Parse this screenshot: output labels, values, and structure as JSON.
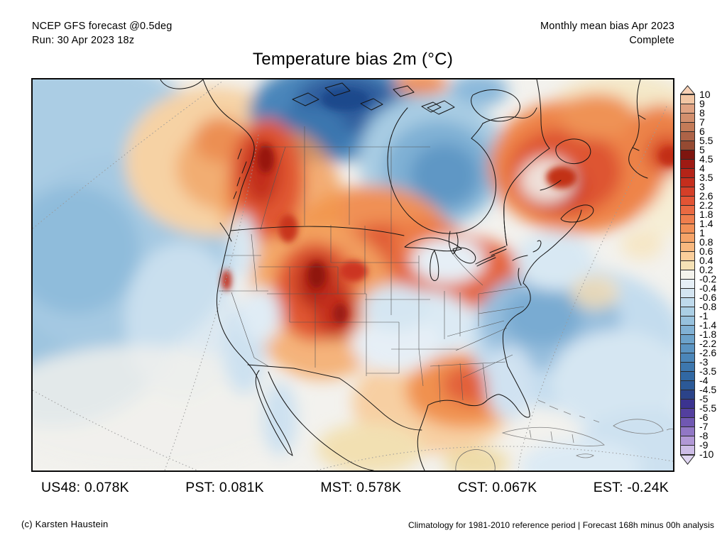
{
  "header": {
    "left_line1": "NCEP GFS forecast @0.5deg",
    "left_line2": "Run: 30 Apr 2023 18z",
    "right_line1": "Monthly mean bias Apr 2023",
    "right_line2": "Complete"
  },
  "title": "Temperature bias 2m (°C)",
  "stats": [
    "US48: 0.078K",
    "PST: 0.081K",
    "MST: 0.578K",
    "CST: 0.067K",
    "EST: -0.24K"
  ],
  "footer": {
    "left": "(c) Karsten Haustein",
    "right": "Climatology for 1981-2010 reference period | Forecast 168h minus 00h analysis"
  },
  "colorbar": {
    "labels": [
      "10",
      "9",
      "8",
      "7",
      "6",
      "5.5",
      "5",
      "4.5",
      "4",
      "3.5",
      "3",
      "2.6",
      "2.2",
      "1.8",
      "1.4",
      "1",
      "0.8",
      "0.6",
      "0.4",
      "0.2",
      "-0.2",
      "-0.4",
      "-0.6",
      "-0.8",
      "-1",
      "-1.4",
      "-1.8",
      "-2.2",
      "-2.6",
      "-3",
      "-3.5",
      "-4",
      "-4.5",
      "-5",
      "-5.5",
      "-6",
      "-7",
      "-8",
      "-9",
      "-10"
    ],
    "colors": [
      "#f2c6a4",
      "#e0a383",
      "#d28f6d",
      "#c37b58",
      "#ad6347",
      "#954a32",
      "#7e150f",
      "#9e1a13",
      "#b52418",
      "#c52e1d",
      "#d43f28",
      "#e25434",
      "#ea6a42",
      "#ef7e4d",
      "#f29057",
      "#f5a368",
      "#f8b87f",
      "#fbce9b",
      "#f6e2b6",
      "#f4f3ed",
      "#e6eff6",
      "#d4e5f1",
      "#bfdaec",
      "#abcfe5",
      "#97c1dd",
      "#81b1d4",
      "#6ca2ca",
      "#5b94c2",
      "#4b86b9",
      "#3d77ae",
      "#3168a3",
      "#2b5997",
      "#2b4389",
      "#3b3390",
      "#533f9e",
      "#7058b2",
      "#9177c5",
      "#b198d6",
      "#cdbde7"
    ],
    "arrow_top_color": "#f7d0b5",
    "arrow_bottom_color": "#e0d6f2"
  },
  "chart_data": {
    "type": "heatmap",
    "title": "Temperature bias 2m (°C)",
    "units": "°C (bias, forecast 168h minus 00h analysis)",
    "region": "North America (polar stereographic view)",
    "model": "NCEP GFS forecast @0.5deg",
    "run": "30 Apr 2023 18z",
    "period": "Monthly mean bias Apr 2023 (Complete)",
    "reference": "Climatology for 1981-2010 reference period",
    "colorbar_levels": [
      10,
      9,
      8,
      7,
      6,
      5.5,
      5,
      4.5,
      4,
      3.5,
      3,
      2.6,
      2.2,
      1.8,
      1.4,
      1,
      0.8,
      0.6,
      0.4,
      0.2,
      -0.2,
      -0.4,
      -0.6,
      -0.8,
      -1,
      -1.4,
      -1.8,
      -2.2,
      -2.6,
      -3,
      -3.5,
      -4,
      -4.5,
      -5,
      -5.5,
      -6,
      -7,
      -8,
      -9,
      -10
    ],
    "regional_means_K": [
      {
        "region": "US48",
        "value": 0.078
      },
      {
        "region": "PST",
        "value": 0.081
      },
      {
        "region": "MST",
        "value": 0.578
      },
      {
        "region": "CST",
        "value": 0.067
      },
      {
        "region": "EST",
        "value": -0.24
      }
    ],
    "notable_features": [
      {
        "area": "Yukon / interior British Columbia",
        "bias": "+2 to +4 warm"
      },
      {
        "area": "Central Canada prairies and Quebec-Labrador",
        "bias": "+1.8 to +3 warm"
      },
      {
        "area": "Canadian Arctic archipelago",
        "bias": "-2 to -4 cold"
      },
      {
        "area": "Hudson Bay",
        "bias": "-1 to -2.6 cold"
      },
      {
        "area": "US mountain west (ID/WY/UT/CO)",
        "bias": "+2 to +4.5 warm"
      },
      {
        "area": "Southern plains (OK/TX)",
        "bias": "+1 to +2.2 warm"
      },
      {
        "area": "Eastern US and western Atlantic",
        "bias": "-0.4 to -1.4 cold"
      },
      {
        "area": "Northeast Pacific (Gulf of Alaska)",
        "bias": "+0.4 to +1 warm"
      },
      {
        "area": "Mid-latitude Pacific offshore",
        "bias": "-0.4 to -1 cold"
      },
      {
        "area": "Greenland southwest corner",
        "bias": "+2 to +4 warm"
      }
    ]
  }
}
